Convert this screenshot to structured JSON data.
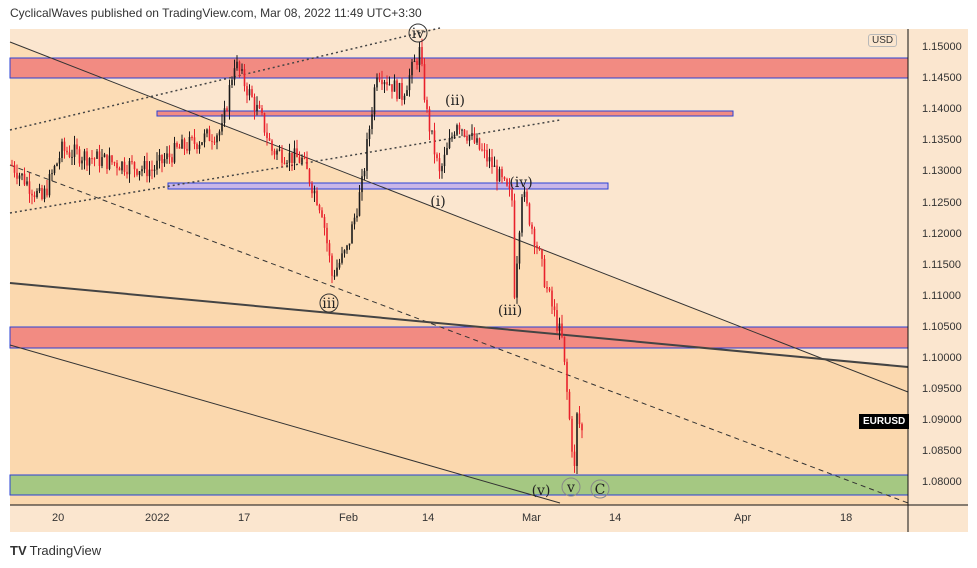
{
  "header": "CyclicalWaves published on TradingView.com, Mar 08, 2022 11:49 UTC+3:30",
  "currency": "USD",
  "symbol": "EURUSD",
  "brand": "TradingView",
  "price_labels": [
    "1.15000",
    "1.14500",
    "1.14000",
    "1.13500",
    "1.13000",
    "1.12500",
    "1.12000",
    "1.11500",
    "1.11000",
    "1.10500",
    "1.10000",
    "1.09500",
    "1.09000",
    "1.08500",
    "1.08000"
  ],
  "time_labels": [
    "20",
    "2022",
    "17",
    "Feb",
    "14",
    "Mar",
    "14",
    "Apr",
    "18"
  ],
  "wave_labels": [
    "iv",
    "(ii)",
    "(i)",
    "(iv)",
    "iii",
    "(iii)",
    "(v)",
    "v",
    "C"
  ],
  "colors": {
    "bg": "#fbe6cf",
    "red_zone": "#f28b82",
    "green_zone": "#a5c882",
    "up": "#1a1a1a",
    "down": "#e8212b",
    "zone_border": "#2941d6"
  },
  "price_path": [
    [
      0,
      1.131
    ],
    [
      12,
      1.1254
    ],
    [
      20,
      1.1334
    ],
    [
      36,
      1.1318
    ],
    [
      56,
      1.1302
    ],
    [
      66,
      1.1334
    ],
    [
      84,
      1.1366
    ],
    [
      89,
      1.1476
    ],
    [
      100,
      1.1382
    ],
    [
      104,
      1.1334
    ],
    [
      116,
      1.1318
    ],
    [
      124,
      1.1238
    ],
    [
      128,
      1.1133
    ],
    [
      134,
      1.1173
    ],
    [
      140,
      1.1278
    ],
    [
      146,
      1.1463
    ],
    [
      156,
      1.1423
    ],
    [
      163,
      1.1492
    ],
    [
      166,
      1.1391
    ],
    [
      171,
      1.1294
    ],
    [
      178,
      1.1382
    ],
    [
      192,
      1.131
    ],
    [
      200,
      1.1254
    ],
    [
      201,
      1.1109
    ],
    [
      204,
      1.127
    ],
    [
      210,
      1.1181
    ],
    [
      214,
      1.1109
    ],
    [
      220,
      1.1029
    ],
    [
      223,
      1.09
    ],
    [
      225,
      1.082
    ],
    [
      226,
      1.0905
    ],
    [
      229,
      1.087
    ]
  ]
}
